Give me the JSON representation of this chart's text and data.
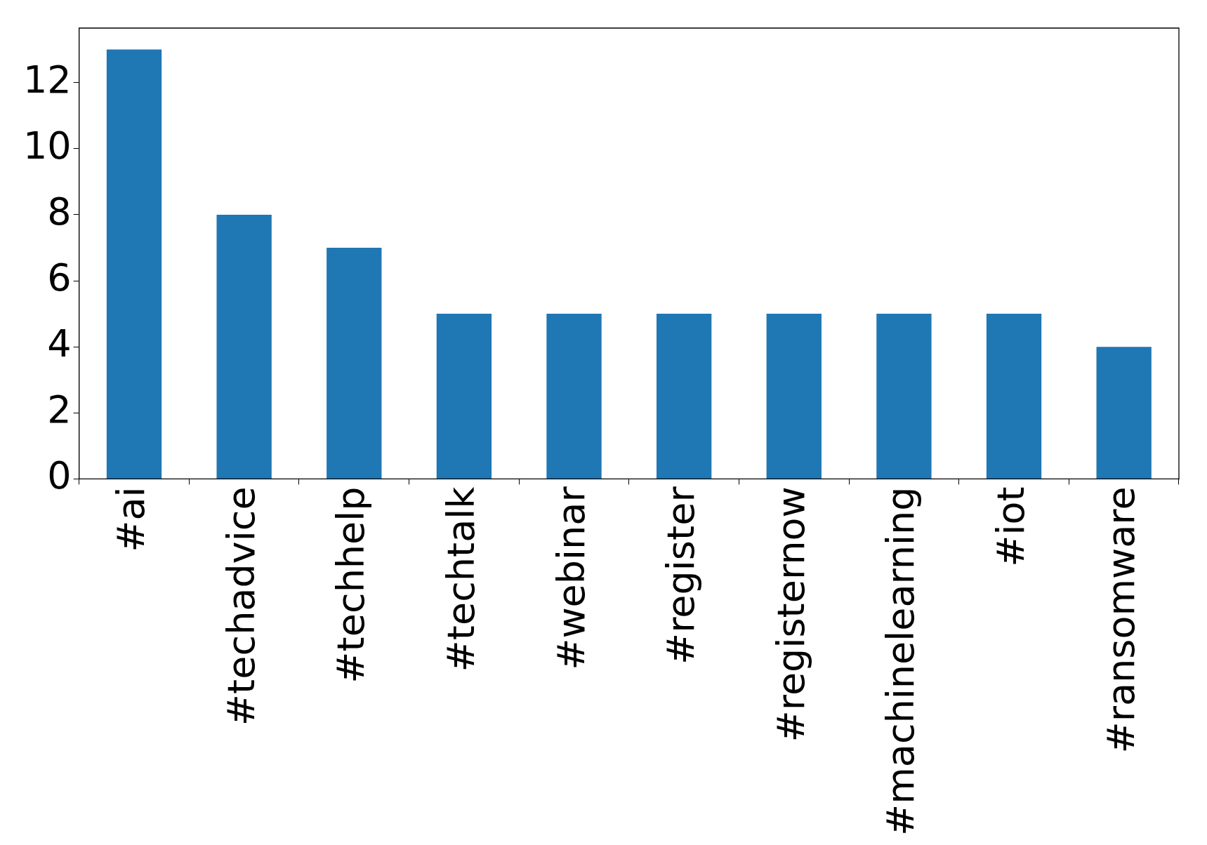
{
  "chart_data": {
    "type": "bar",
    "categories": [
      "#ai",
      "#techadvice",
      "#techhelp",
      "#techtalk",
      "#webinar",
      "#register",
      "#registernow",
      "#machinelearning",
      "#iot",
      "#ransomware"
    ],
    "values": [
      13,
      8,
      7,
      5,
      5,
      5,
      5,
      5,
      5,
      4
    ],
    "color": "#1f77b4",
    "ylim": [
      0,
      13.65
    ],
    "yticks": [
      0,
      2,
      4,
      6,
      8,
      10,
      12
    ],
    "grid": false,
    "legend": false
  }
}
